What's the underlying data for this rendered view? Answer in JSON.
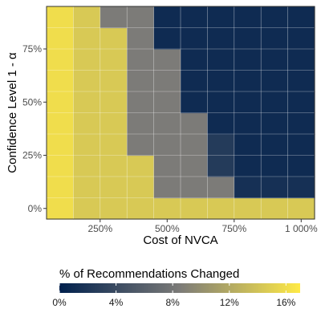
{
  "chart_data": {
    "type": "heatmap",
    "title": "",
    "xlabel": "Cost of NVCA",
    "ylabel": "Confidence Level 1 - α",
    "x_ticks": [
      "250%",
      "500%",
      "750%",
      "1 000%"
    ],
    "y_ticks": [
      "0%",
      "25%",
      "50%",
      "75%"
    ],
    "legend_title": "% of Recommendations Changed",
    "legend_ticks": [
      "0%",
      "4%",
      "8%",
      "12%",
      "16%"
    ],
    "color_scale": {
      "low": "#00204d",
      "mid": "#7c7b78",
      "high": "#ffea46",
      "min": 0,
      "max": 17
    },
    "legend_position": "bottom",
    "grid": true,
    "x_columns": [
      100,
      200,
      300,
      400,
      500,
      600,
      700,
      800,
      900,
      1000
    ],
    "y_rows": [
      0.0,
      0.1,
      0.2,
      0.3,
      0.4,
      0.5,
      0.6,
      0.7,
      0.8,
      0.9
    ],
    "z_values_percent": [
      [
        16.0,
        14.5,
        14.5,
        14.5,
        14.5,
        14.5,
        14.5,
        14.5,
        14.5,
        14.5
      ],
      [
        16.0,
        14.5,
        14.5,
        14.5,
        8.5,
        8.5,
        8.5,
        1.5,
        1.5,
        1.5
      ],
      [
        16.0,
        14.5,
        14.5,
        14.5,
        8.5,
        8.5,
        2.5,
        1.0,
        1.0,
        1.0
      ],
      [
        16.0,
        14.5,
        14.5,
        8.5,
        8.5,
        8.5,
        2.5,
        1.0,
        1.0,
        1.0
      ],
      [
        16.0,
        14.5,
        14.5,
        8.5,
        8.5,
        8.5,
        1.0,
        1.0,
        1.0,
        1.0
      ],
      [
        16.0,
        14.5,
        14.5,
        8.5,
        8.5,
        1.0,
        1.0,
        1.0,
        1.0,
        1.0
      ],
      [
        16.0,
        14.5,
        14.5,
        8.5,
        8.5,
        1.0,
        1.0,
        1.0,
        1.0,
        1.0
      ],
      [
        16.0,
        14.5,
        14.5,
        8.5,
        8.5,
        1.0,
        1.0,
        1.0,
        1.0,
        1.0
      ],
      [
        16.0,
        14.5,
        14.5,
        8.5,
        1.0,
        1.0,
        1.0,
        1.0,
        1.0,
        1.0
      ],
      [
        16.0,
        14.5,
        8.5,
        8.5,
        1.0,
        1.0,
        1.0,
        1.0,
        1.0,
        1.0
      ]
    ]
  }
}
